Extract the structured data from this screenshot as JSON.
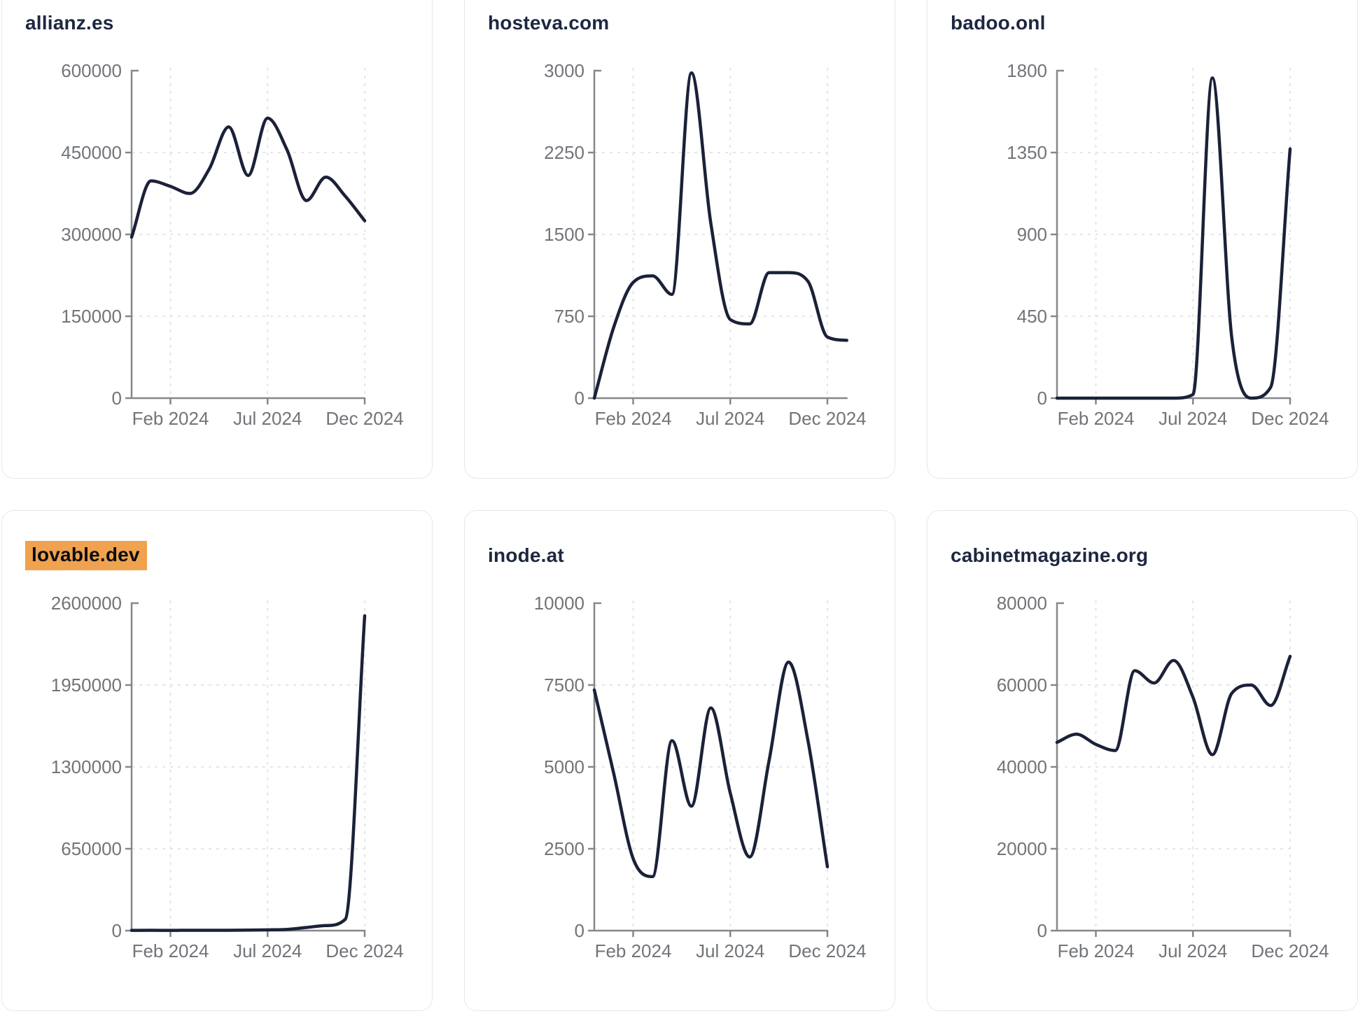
{
  "style": {
    "background": "#ffffff",
    "card_border": "#e7e8ec",
    "title_color": "#1d2740",
    "highlight_bg": "#f0a24e",
    "highlight_text": "#0a0d12",
    "line_color": "#1b2138",
    "axis_color": "#85878a",
    "grid_color": "#e5e5ea",
    "tick_label_color": "#717478"
  },
  "axis": {
    "x_tick_labels": [
      "Feb 2024",
      "Jul 2024",
      "Dec 2024"
    ],
    "x_tick_months": [
      2,
      7,
      12
    ]
  },
  "chart_data": [
    {
      "type": "line",
      "title": "allianz.es",
      "highlighted": false,
      "ylim": [
        0,
        600000
      ],
      "y_ticks": [
        0,
        150000,
        300000,
        450000,
        600000
      ],
      "x": [
        "Dec 2023",
        "Jan 2024",
        "Feb 2024",
        "Mar 2024",
        "Apr 2024",
        "May 2024",
        "Jun 2024",
        "Jul 2024",
        "Aug 2024",
        "Sep 2024",
        "Oct 2024",
        "Nov 2024",
        "Dec 2024"
      ],
      "values": [
        295000,
        398000,
        388000,
        375000,
        420000,
        497000,
        408000,
        513000,
        455000,
        362000,
        405000,
        370000,
        325000
      ]
    },
    {
      "type": "line",
      "title": "hosteva.com",
      "highlighted": false,
      "ylim": [
        0,
        3000
      ],
      "y_ticks": [
        0,
        750,
        1500,
        2250,
        3000
      ],
      "x": [
        "Dec 2023",
        "Jan 2024",
        "Feb 2024",
        "Mar 2024",
        "Apr 2024",
        "May 2024",
        "Jun 2024",
        "Jul 2024",
        "Aug 2024",
        "Sep 2024",
        "Oct 2024",
        "Nov 2024",
        "Dec 2024",
        "Jan 2025"
      ],
      "values": [
        0,
        650,
        1060,
        1120,
        950,
        2980,
        1600,
        720,
        680,
        1150,
        1150,
        1070,
        560,
        530
      ]
    },
    {
      "type": "line",
      "title": "badoo.onl",
      "highlighted": false,
      "ylim": [
        0,
        1800
      ],
      "y_ticks": [
        0,
        450,
        900,
        1350,
        1800
      ],
      "x": [
        "Dec 2023",
        "Jan 2024",
        "Feb 2024",
        "Mar 2024",
        "Apr 2024",
        "May 2024",
        "Jun 2024",
        "Jul 2024",
        "Aug 2024",
        "Sep 2024",
        "Oct 2024",
        "Nov 2024",
        "Dec 2024"
      ],
      "values": [
        0,
        0,
        0,
        0,
        0,
        0,
        0,
        20,
        1760,
        330,
        0,
        60,
        1370
      ]
    },
    {
      "type": "line",
      "title": "lovable.dev",
      "highlighted": true,
      "ylim": [
        0,
        2600000
      ],
      "y_ticks": [
        0,
        650000,
        1300000,
        1950000,
        2600000
      ],
      "x": [
        "Dec 2023",
        "Jan 2024",
        "Feb 2024",
        "Mar 2024",
        "Apr 2024",
        "May 2024",
        "Jun 2024",
        "Jul 2024",
        "Aug 2024",
        "Sep 2024",
        "Oct 2024",
        "Nov 2024",
        "Dec 2024"
      ],
      "values": [
        2000,
        2500,
        2000,
        3000,
        2500,
        3000,
        4000,
        6000,
        10000,
        25000,
        40000,
        90000,
        2500000
      ]
    },
    {
      "type": "line",
      "title": "inode.at",
      "highlighted": false,
      "ylim": [
        0,
        10000
      ],
      "y_ticks": [
        0,
        2500,
        5000,
        7500,
        10000
      ],
      "x": [
        "Dec 2023",
        "Jan 2024",
        "Feb 2024",
        "Mar 2024",
        "Apr 2024",
        "May 2024",
        "Jun 2024",
        "Jul 2024",
        "Aug 2024",
        "Sep 2024",
        "Oct 2024",
        "Nov 2024",
        "Dec 2024"
      ],
      "values": [
        7350,
        4800,
        2200,
        1650,
        5800,
        3800,
        6800,
        4200,
        2250,
        5200,
        8200,
        5800,
        1950
      ]
    },
    {
      "type": "line",
      "title": "cabinetmagazine.org",
      "highlighted": false,
      "ylim": [
        0,
        80000
      ],
      "y_ticks": [
        0,
        20000,
        40000,
        60000,
        80000
      ],
      "x": [
        "Dec 2023",
        "Jan 2024",
        "Feb 2024",
        "Mar 2024",
        "Apr 2024",
        "May 2024",
        "Jun 2024",
        "Jul 2024",
        "Aug 2024",
        "Sep 2024",
        "Oct 2024",
        "Nov 2024",
        "Dec 2024"
      ],
      "values": [
        46000,
        48000,
        45500,
        44000,
        63500,
        60500,
        66000,
        57000,
        43000,
        58000,
        60000,
        55000,
        67000
      ]
    }
  ]
}
